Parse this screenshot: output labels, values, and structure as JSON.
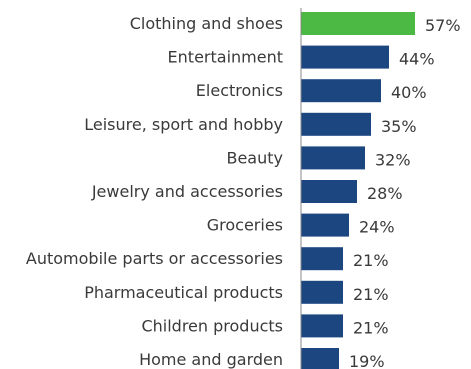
{
  "chart_data": {
    "type": "bar",
    "orientation": "horizontal",
    "categories": [
      "Clothing and shoes",
      "Entertainment",
      "Electronics",
      "Leisure, sport and hobby",
      "Beauty",
      "Jewelry and accessories",
      "Groceries",
      "Automobile parts or accessories",
      "Pharmaceutical products",
      "Children products",
      "Home and garden"
    ],
    "values": [
      57,
      44,
      40,
      35,
      32,
      28,
      24,
      21,
      21,
      21,
      19
    ],
    "value_labels": [
      "57%",
      "44%",
      "40%",
      "35%",
      "32%",
      "28%",
      "24%",
      "21%",
      "21%",
      "21%",
      "19%"
    ],
    "unit": "%",
    "xlim": [
      0,
      57
    ],
    "grid": false,
    "legend": "none",
    "colors": {
      "highlight": "#4cb944",
      "default": "#1b467f",
      "axis": "#888888",
      "text": "#3a3a3a"
    },
    "highlight_index": 0
  }
}
